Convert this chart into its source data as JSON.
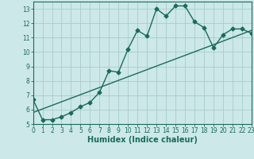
{
  "xlabel": "Humidex (Indice chaleur)",
  "background_color": "#cce8e8",
  "grid_color": "#aacccc",
  "line_color": "#1a6b5a",
  "x_data": [
    0,
    1,
    2,
    3,
    4,
    5,
    6,
    7,
    8,
    9,
    10,
    11,
    12,
    13,
    14,
    15,
    16,
    17,
    18,
    19,
    20,
    21,
    22,
    23
  ],
  "y_data": [
    6.7,
    5.3,
    5.3,
    5.5,
    5.8,
    6.2,
    6.5,
    7.2,
    8.7,
    8.6,
    10.2,
    11.5,
    11.1,
    13.0,
    12.5,
    13.2,
    13.2,
    12.1,
    11.7,
    10.3,
    11.2,
    11.6,
    11.6,
    11.3
  ],
  "trend_x": [
    0,
    23
  ],
  "trend_y": [
    5.8,
    11.5
  ],
  "xlim": [
    0,
    23
  ],
  "ylim": [
    5,
    13.5
  ],
  "yticks": [
    5,
    6,
    7,
    8,
    9,
    10,
    11,
    12,
    13
  ],
  "xticks": [
    0,
    1,
    2,
    3,
    4,
    5,
    6,
    7,
    8,
    9,
    10,
    11,
    12,
    13,
    14,
    15,
    16,
    17,
    18,
    19,
    20,
    21,
    22,
    23
  ],
  "marker_size": 2.5,
  "line_width": 1.0,
  "xlabel_fontsize": 7,
  "tick_fontsize": 5.5
}
